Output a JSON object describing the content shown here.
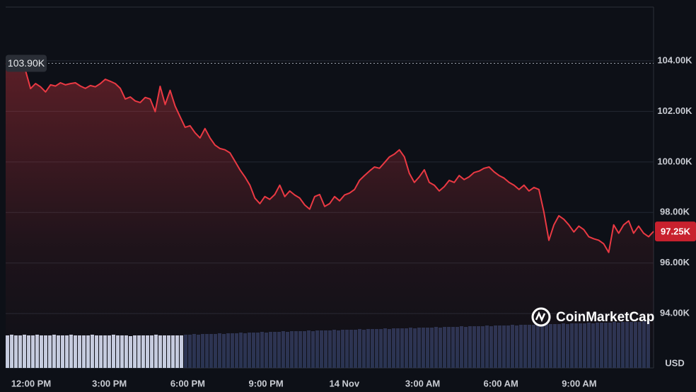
{
  "chart_data": {
    "type": "line",
    "series": [
      {
        "color": "#ea3943",
        "values": [
          103900,
          103830,
          103750,
          103750,
          103600,
          102900,
          103100,
          102970,
          102770,
          103050,
          103000,
          103130,
          103050,
          103100,
          103130,
          103000,
          102910,
          103020,
          102970,
          103100,
          103270,
          103190,
          103100,
          102910,
          102490,
          102570,
          102410,
          102350,
          102550,
          102490,
          101990,
          102990,
          102270,
          102830,
          102210,
          101790,
          101370,
          101430,
          101150,
          100950,
          101320,
          100950,
          100670,
          100530,
          100480,
          100360,
          100030,
          99690,
          99410,
          99080,
          98570,
          98350,
          98630,
          98520,
          98710,
          99080,
          98630,
          98850,
          98690,
          98570,
          98300,
          98130,
          98630,
          98710,
          98240,
          98350,
          98630,
          98460,
          98690,
          98770,
          98910,
          99270,
          99460,
          99640,
          99800,
          99750,
          99970,
          100200,
          100310,
          100480,
          100200,
          99550,
          99190,
          99410,
          99690,
          99190,
          99080,
          98850,
          99020,
          99270,
          99190,
          99460,
          99300,
          99410,
          99580,
          99640,
          99750,
          99800,
          99610,
          99460,
          99360,
          99190,
          99080,
          98910,
          99080,
          98850,
          98990,
          98910,
          98010,
          96900,
          97510,
          97870,
          97730,
          97510,
          97230,
          97460,
          97320,
          97040,
          96960,
          96900,
          96760,
          96420,
          97510,
          97180,
          97510,
          97670,
          97180,
          97460,
          97180,
          97040,
          97250
        ]
      }
    ],
    "ylim": [
      91850,
      106125
    ],
    "yticks": [
      {
        "value": 94000,
        "label": "94.00K"
      },
      {
        "value": 96000,
        "label": "96.00K"
      },
      {
        "value": 98000,
        "label": "98.00K"
      },
      {
        "value": 100000,
        "label": "100.00K"
      },
      {
        "value": 102000,
        "label": "102.00K"
      },
      {
        "value": 104000,
        "label": "104.00K"
      }
    ],
    "xtick_labels": [
      "12:00 PM",
      "3:00 PM",
      "6:00 PM",
      "9:00 PM",
      "14 Nov",
      "3:00 AM",
      "6:00 AM",
      "9:00 AM"
    ],
    "grid": true,
    "reference_line": {
      "value": 103900,
      "label": "103.90K"
    },
    "last_price": {
      "value": 97250,
      "label": "97.25K"
    },
    "currency": "USD",
    "watermark": "CoinMarketCap",
    "volume_ylim": [
      0,
      160
    ],
    "volume_bars": [
      {
        "color": "#c5cde0",
        "values": [
          46,
          47,
          46,
          46,
          47,
          46,
          46,
          47,
          46,
          46,
          46,
          47,
          46,
          46,
          46,
          47,
          46,
          46,
          46,
          46,
          47,
          46,
          46,
          46,
          46,
          47,
          46,
          46,
          46,
          45,
          46,
          46,
          46,
          46,
          46,
          47,
          46,
          46,
          46,
          46,
          46,
          46
        ]
      },
      {
        "color": "#2a3452",
        "values": [
          47,
          47,
          48,
          47,
          48,
          48,
          48,
          48,
          49,
          48,
          49,
          49,
          49,
          50,
          49,
          50,
          50,
          50,
          51,
          50,
          51,
          51,
          51,
          52,
          51,
          52,
          52,
          52,
          52,
          53,
          52,
          53,
          53,
          53,
          53,
          54,
          53,
          54,
          54,
          54,
          54,
          55,
          54,
          55,
          55,
          55,
          55,
          56,
          55,
          56,
          56,
          56,
          56,
          57,
          56,
          57,
          57,
          57,
          57,
          58,
          57,
          58,
          58,
          58,
          58,
          59,
          58,
          59,
          59,
          59,
          59,
          60,
          59,
          60,
          60,
          60,
          60,
          61,
          60,
          61,
          61,
          61,
          61,
          62,
          61,
          62,
          62,
          62,
          62,
          63,
          62,
          63,
          63,
          63,
          63,
          64,
          63,
          64,
          64,
          64,
          64,
          65,
          64,
          65,
          65,
          65,
          65,
          65,
          66,
          66
        ]
      }
    ]
  }
}
